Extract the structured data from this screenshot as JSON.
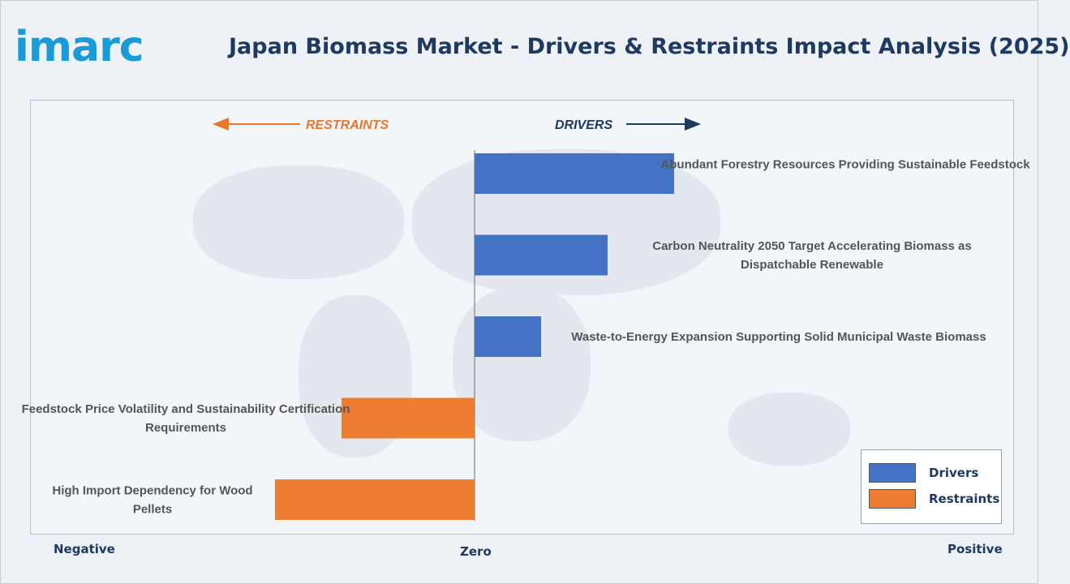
{
  "header": {
    "logo_text": "imarc",
    "title": "Japan Biomass Market - Drivers & Restraints Impact Analysis (2025)"
  },
  "colors": {
    "drivers": "#4472c4",
    "restraints": "#ed7d31",
    "restraints_text": "#e8782a",
    "drivers_text": "#1f3a60",
    "label_text": "#555555"
  },
  "direction_labels": {
    "restraints": "RESTRAINTS",
    "drivers": "DRIVERS"
  },
  "axis_labels": {
    "negative": "Negative",
    "zero": "Zero",
    "positive": "Positive"
  },
  "legend": {
    "items": [
      {
        "label": "Drivers",
        "color": "#4472c4"
      },
      {
        "label": "Restraints",
        "color": "#ed7d31"
      }
    ]
  },
  "chart_data": {
    "type": "bar",
    "orientation": "horizontal",
    "categories": [
      "Abundant Forestry Resources Providing Sustainable Feedstock",
      "Carbon Neutrality 2050 Target Accelerating Biomass as Dispatchable Renewable",
      "Waste-to-Energy Expansion Supporting Solid Municipal Waste Biomass",
      "Feedstock Price Volatility and Sustainability Certification Requirements",
      "High Import Dependency for Wood Pellets"
    ],
    "series": [
      {
        "name": "Drivers",
        "values": [
          3.0,
          2.0,
          1.0,
          0,
          0
        ]
      },
      {
        "name": "Restraints",
        "values": [
          0,
          0,
          0,
          -2.0,
          -3.0
        ]
      }
    ],
    "xlim": [
      -6.7,
      8.0
    ],
    "grid": false,
    "legend_position": "bottom-right"
  }
}
